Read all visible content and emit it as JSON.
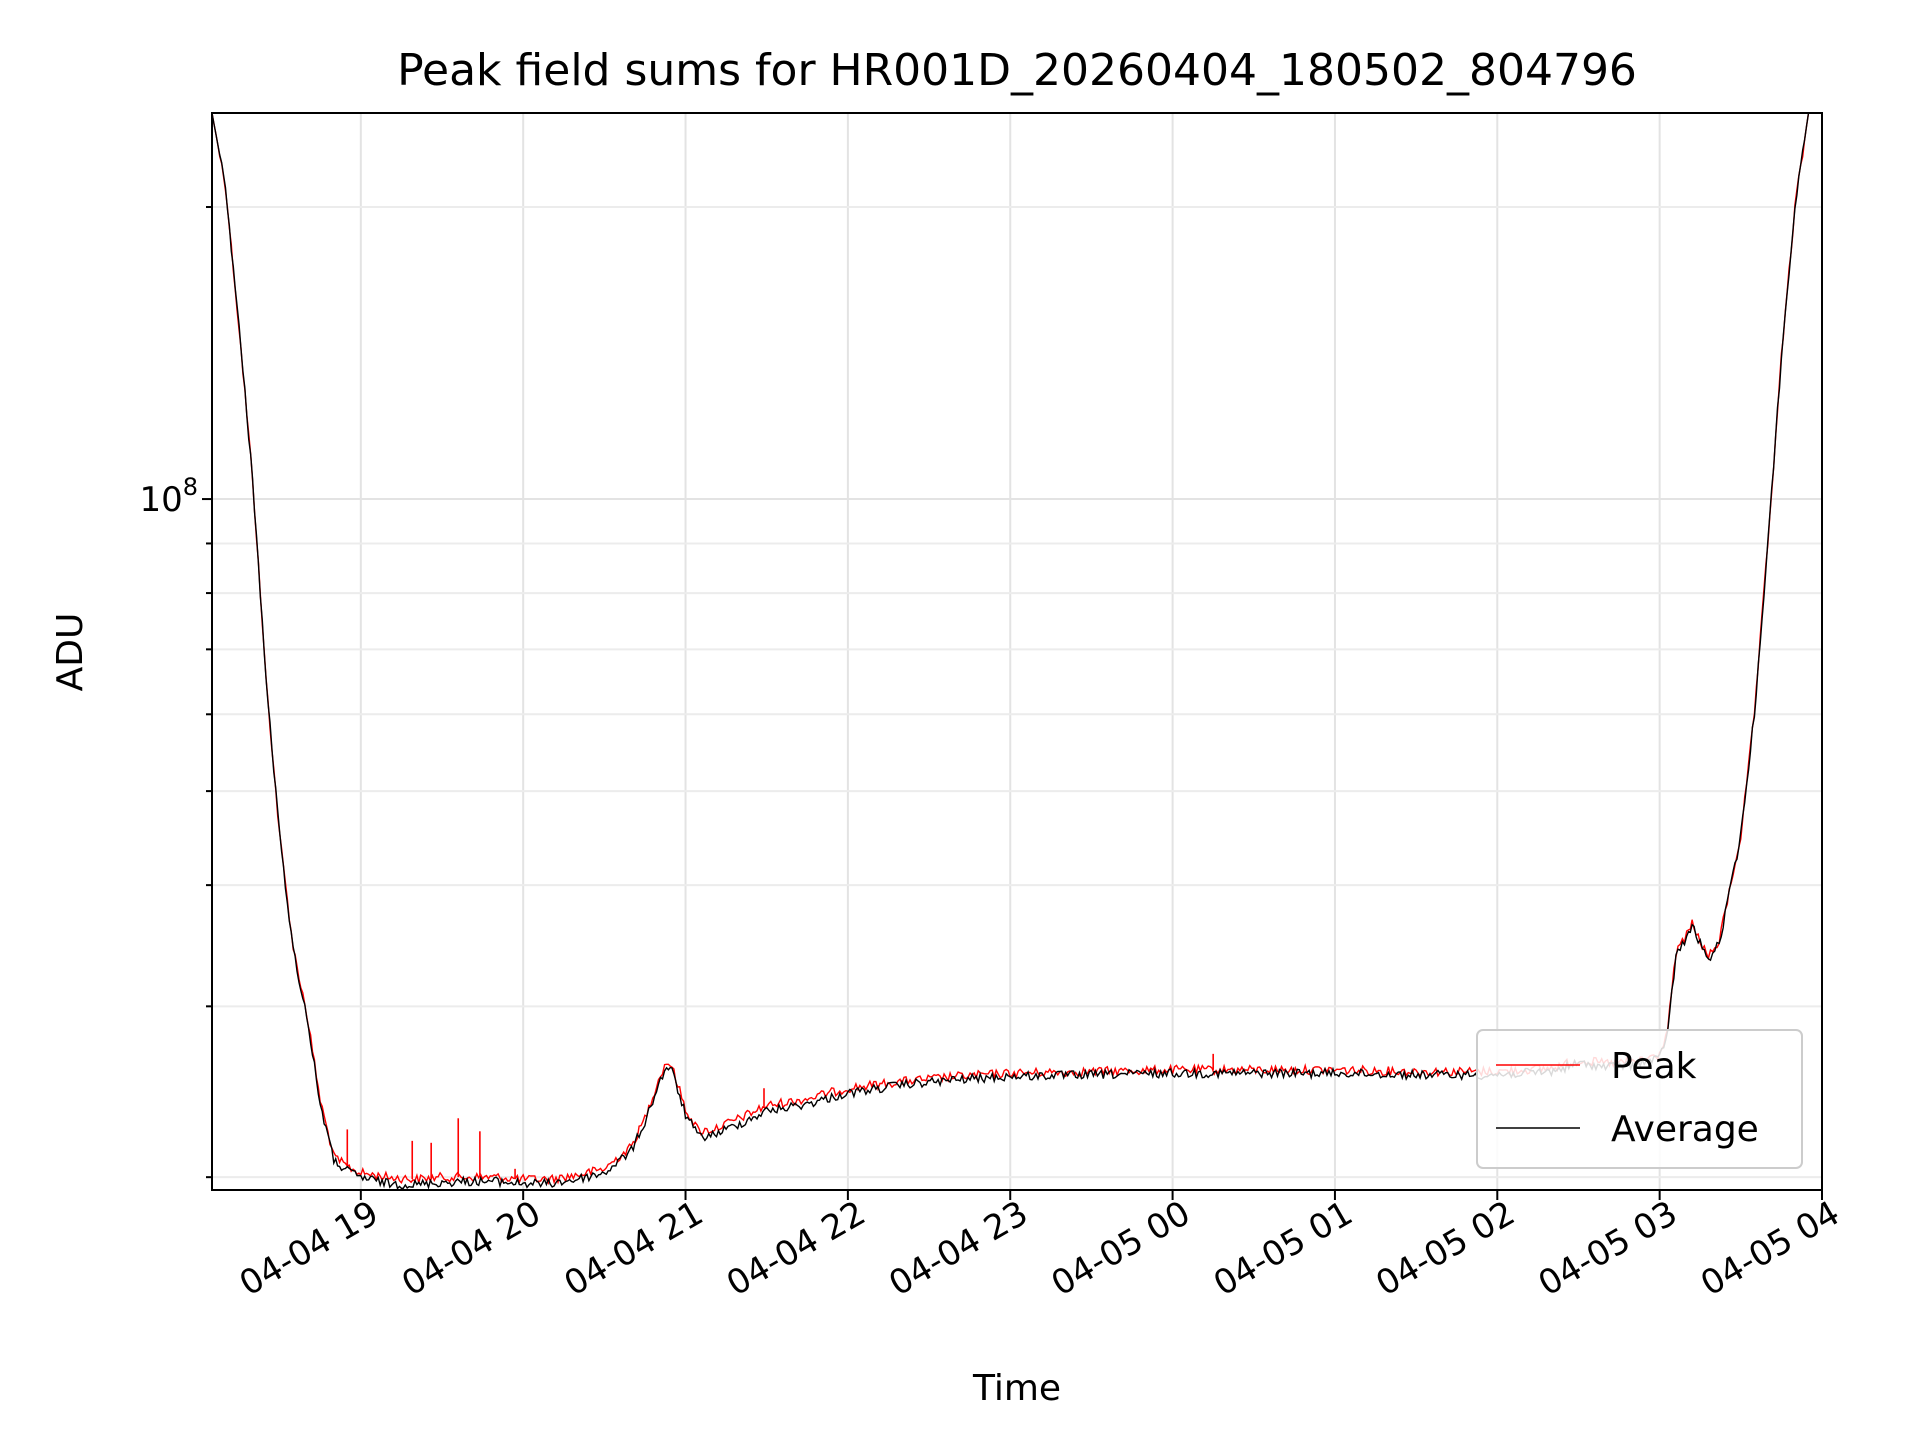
{
  "chart_data": {
    "type": "line",
    "title": "Peak field sums for HR001D_20260404_180502_804796",
    "xlabel": "Time",
    "ylabel": "ADU",
    "y_scale": "log",
    "ylim": [
      19400000,
      250000000
    ],
    "xlim": [
      "2026-04-04T18:05",
      "2026-04-05T04:00"
    ],
    "x_ticks": [
      {
        "value": "2026-04-04T19:00",
        "label": "04-04 19"
      },
      {
        "value": "2026-04-04T20:00",
        "label": "04-04 20"
      },
      {
        "value": "2026-04-04T21:00",
        "label": "04-04 21"
      },
      {
        "value": "2026-04-04T22:00",
        "label": "04-04 22"
      },
      {
        "value": "2026-04-04T23:00",
        "label": "04-04 23"
      },
      {
        "value": "2026-04-05T00:00",
        "label": "04-05 00"
      },
      {
        "value": "2026-04-05T01:00",
        "label": "04-05 01"
      },
      {
        "value": "2026-04-05T02:00",
        "label": "04-05 02"
      },
      {
        "value": "2026-04-05T03:00",
        "label": "04-05 03"
      },
      {
        "value": "2026-04-05T04:00",
        "label": "04-05 04"
      }
    ],
    "y_ticks": [
      {
        "value": 100000000,
        "base": "10",
        "exp": "8"
      }
    ],
    "y_minor_ticks": [
      20000000,
      30000000,
      40000000,
      50000000,
      60000000,
      70000000,
      80000000,
      90000000,
      200000000
    ],
    "grid": true,
    "legend_position": "lower-right",
    "series": [
      {
        "name": "Peak",
        "color": "#ff0000",
        "points": [
          [
            "2026-04-04T18:05",
            250000000
          ],
          [
            "2026-04-04T18:10",
            210000000
          ],
          [
            "2026-04-04T18:15",
            150000000
          ],
          [
            "2026-04-04T18:20",
            105000000
          ],
          [
            "2026-04-04T18:25",
            65000000
          ],
          [
            "2026-04-04T18:30",
            45000000
          ],
          [
            "2026-04-04T18:35",
            34500000
          ],
          [
            "2026-04-04T18:40",
            29500000
          ],
          [
            "2026-04-04T18:45",
            24000000
          ],
          [
            "2026-04-04T18:50",
            21000000
          ],
          [
            "2026-04-04T18:55",
            20500000
          ],
          [
            "2026-04-04T19:00",
            20200000
          ],
          [
            "2026-04-04T19:10",
            20000000
          ],
          [
            "2026-04-04T19:20",
            19900000
          ],
          [
            "2026-04-04T19:30",
            20000000
          ],
          [
            "2026-04-04T19:40",
            20000000
          ],
          [
            "2026-04-04T19:50",
            20000000
          ],
          [
            "2026-04-04T20:00",
            19900000
          ],
          [
            "2026-04-04T20:10",
            19900000
          ],
          [
            "2026-04-04T20:20",
            20100000
          ],
          [
            "2026-04-04T20:30",
            20400000
          ],
          [
            "2026-04-04T20:40",
            21500000
          ],
          [
            "2026-04-04T20:45",
            23000000
          ],
          [
            "2026-04-04T20:50",
            25200000
          ],
          [
            "2026-04-04T20:53",
            26300000
          ],
          [
            "2026-04-04T20:55",
            26000000
          ],
          [
            "2026-04-04T21:00",
            23500000
          ],
          [
            "2026-04-04T21:05",
            22300000
          ],
          [
            "2026-04-04T21:10",
            22400000
          ],
          [
            "2026-04-04T21:20",
            23000000
          ],
          [
            "2026-04-04T21:30",
            23700000
          ],
          [
            "2026-04-04T21:45",
            24100000
          ],
          [
            "2026-04-04T22:00",
            24700000
          ],
          [
            "2026-04-04T22:20",
            25100000
          ],
          [
            "2026-04-04T22:40",
            25400000
          ],
          [
            "2026-04-04T23:00",
            25600000
          ],
          [
            "2026-04-04T23:30",
            25700000
          ],
          [
            "2026-04-05T00:00",
            25800000
          ],
          [
            "2026-04-05T00:30",
            25800000
          ],
          [
            "2026-04-05T01:00",
            25800000
          ],
          [
            "2026-04-05T01:30",
            25700000
          ],
          [
            "2026-04-05T02:00",
            25700000
          ],
          [
            "2026-04-05T02:20",
            25900000
          ],
          [
            "2026-04-05T02:30",
            26400000
          ],
          [
            "2026-04-05T02:40",
            26200000
          ],
          [
            "2026-04-05T02:50",
            26300000
          ],
          [
            "2026-04-05T03:00",
            26700000
          ],
          [
            "2026-04-05T03:03",
            28500000
          ],
          [
            "2026-04-05T03:06",
            34000000
          ],
          [
            "2026-04-05T03:10",
            35500000
          ],
          [
            "2026-04-05T03:12",
            36500000
          ],
          [
            "2026-04-05T03:15",
            35000000
          ],
          [
            "2026-04-05T03:18",
            33700000
          ],
          [
            "2026-04-05T03:22",
            35000000
          ],
          [
            "2026-04-05T03:25",
            38500000
          ],
          [
            "2026-04-05T03:30",
            45000000
          ],
          [
            "2026-04-05T03:35",
            60000000
          ],
          [
            "2026-04-05T03:40",
            90000000
          ],
          [
            "2026-04-05T03:45",
            140000000
          ],
          [
            "2026-04-05T03:50",
            200000000
          ],
          [
            "2026-04-05T03:55",
            250000000
          ]
        ],
        "spikes": [
          [
            "2026-04-04T18:55",
            22400000
          ],
          [
            "2026-04-04T19:19",
            21800000
          ],
          [
            "2026-04-04T19:26",
            21700000
          ],
          [
            "2026-04-04T19:36",
            23000000
          ],
          [
            "2026-04-04T19:44",
            22300000
          ],
          [
            "2026-04-04T19:57",
            20400000
          ],
          [
            "2026-04-04T21:29",
            24700000
          ],
          [
            "2026-04-05T00:15",
            26800000
          ]
        ]
      },
      {
        "name": "Average",
        "color": "#000000",
        "points": [
          [
            "2026-04-04T18:05",
            250000000
          ],
          [
            "2026-04-04T18:10",
            210000000
          ],
          [
            "2026-04-04T18:15",
            150000000
          ],
          [
            "2026-04-04T18:20",
            105000000
          ],
          [
            "2026-04-04T18:25",
            65000000
          ],
          [
            "2026-04-04T18:30",
            45000000
          ],
          [
            "2026-04-04T18:35",
            34300000
          ],
          [
            "2026-04-04T18:40",
            29300000
          ],
          [
            "2026-04-04T18:45",
            23800000
          ],
          [
            "2026-04-04T18:50",
            20800000
          ],
          [
            "2026-04-04T18:55",
            20300000
          ],
          [
            "2026-04-04T19:00",
            20000000
          ],
          [
            "2026-04-04T19:10",
            19700000
          ],
          [
            "2026-04-04T19:20",
            19650000
          ],
          [
            "2026-04-04T19:30",
            19750000
          ],
          [
            "2026-04-04T19:40",
            19800000
          ],
          [
            "2026-04-04T19:50",
            19800000
          ],
          [
            "2026-04-04T20:00",
            19700000
          ],
          [
            "2026-04-04T20:10",
            19700000
          ],
          [
            "2026-04-04T20:20",
            19900000
          ],
          [
            "2026-04-04T20:30",
            20200000
          ],
          [
            "2026-04-04T20:40",
            21300000
          ],
          [
            "2026-04-04T20:45",
            22800000
          ],
          [
            "2026-04-04T20:50",
            24900000
          ],
          [
            "2026-04-04T20:53",
            26000000
          ],
          [
            "2026-04-04T20:55",
            25700000
          ],
          [
            "2026-04-04T21:00",
            23200000
          ],
          [
            "2026-04-04T21:05",
            22000000
          ],
          [
            "2026-04-04T21:10",
            22100000
          ],
          [
            "2026-04-04T21:20",
            22700000
          ],
          [
            "2026-04-04T21:30",
            23400000
          ],
          [
            "2026-04-04T21:45",
            23800000
          ],
          [
            "2026-04-04T22:00",
            24400000
          ],
          [
            "2026-04-04T22:20",
            24900000
          ],
          [
            "2026-04-04T22:40",
            25200000
          ],
          [
            "2026-04-04T23:00",
            25400000
          ],
          [
            "2026-04-04T23:30",
            25500000
          ],
          [
            "2026-04-05T00:00",
            25600000
          ],
          [
            "2026-04-05T00:30",
            25600000
          ],
          [
            "2026-04-05T01:00",
            25600000
          ],
          [
            "2026-04-05T01:30",
            25500000
          ],
          [
            "2026-04-05T02:00",
            25500000
          ],
          [
            "2026-04-05T02:20",
            25700000
          ],
          [
            "2026-04-05T02:30",
            26200000
          ],
          [
            "2026-04-05T02:40",
            26000000
          ],
          [
            "2026-04-05T02:50",
            26100000
          ],
          [
            "2026-04-05T03:00",
            26500000
          ],
          [
            "2026-04-05T03:03",
            28300000
          ],
          [
            "2026-04-05T03:06",
            33800000
          ],
          [
            "2026-04-05T03:10",
            35300000
          ],
          [
            "2026-04-05T03:12",
            36300000
          ],
          [
            "2026-04-05T03:15",
            34800000
          ],
          [
            "2026-04-05T03:18",
            33500000
          ],
          [
            "2026-04-05T03:22",
            34800000
          ],
          [
            "2026-04-05T03:25",
            38300000
          ],
          [
            "2026-04-05T03:30",
            45000000
          ],
          [
            "2026-04-05T03:35",
            60000000
          ],
          [
            "2026-04-05T03:40",
            90000000
          ],
          [
            "2026-04-05T03:45",
            140000000
          ],
          [
            "2026-04-05T03:50",
            200000000
          ],
          [
            "2026-04-05T03:55",
            250000000
          ]
        ]
      }
    ]
  }
}
